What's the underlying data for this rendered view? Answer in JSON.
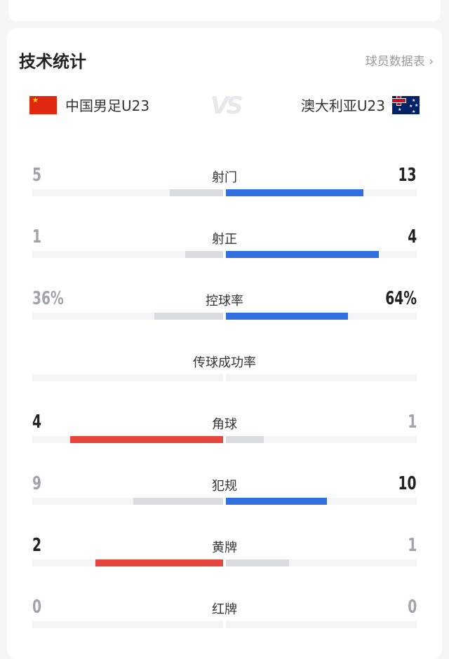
{
  "header": {
    "title": "技术统计",
    "player_stats_link": "球员数据表 ›"
  },
  "teams": {
    "home": {
      "name": "中国男足U23",
      "flag": "china-flag"
    },
    "away": {
      "name": "澳大利亚U23",
      "flag": "australia-flag"
    },
    "vs": "VS"
  },
  "colors": {
    "home_accent": "#e8453c",
    "away_accent": "#2f6fe0",
    "loser_bar": "#d8dbe0"
  },
  "stats": [
    {
      "label": "射门",
      "home": "5",
      "away": "13",
      "home_frac": 0.28,
      "away_frac": 0.72,
      "winner": "away"
    },
    {
      "label": "射正",
      "home": "1",
      "away": "4",
      "home_frac": 0.2,
      "away_frac": 0.8,
      "winner": "away"
    },
    {
      "label": "控球率",
      "home": "36%",
      "away": "64%",
      "home_frac": 0.36,
      "away_frac": 0.64,
      "winner": "away"
    },
    {
      "label": "传球成功率",
      "home": "",
      "away": "",
      "home_frac": 0,
      "away_frac": 0,
      "winner": "none"
    },
    {
      "label": "角球",
      "home": "4",
      "away": "1",
      "home_frac": 0.8,
      "away_frac": 0.2,
      "winner": "home"
    },
    {
      "label": "犯规",
      "home": "9",
      "away": "10",
      "home_frac": 0.47,
      "away_frac": 0.53,
      "winner": "away"
    },
    {
      "label": "黄牌",
      "home": "2",
      "away": "1",
      "home_frac": 0.67,
      "away_frac": 0.33,
      "winner": "home"
    },
    {
      "label": "红牌",
      "home": "0",
      "away": "0",
      "home_frac": 0,
      "away_frac": 0,
      "winner": "none"
    }
  ]
}
